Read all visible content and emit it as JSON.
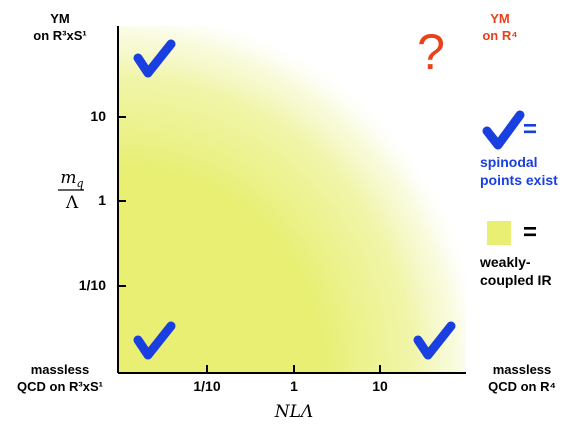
{
  "corners": {
    "top_left": [
      "YM",
      "on R³xS¹"
    ],
    "top_right": [
      "YM",
      "on R⁴"
    ],
    "bottom_left": [
      "massless",
      "QCD on R³xS¹"
    ],
    "bottom_right": [
      "massless",
      "QCD on R⁴"
    ]
  },
  "colors": {
    "region": "#e8ef72",
    "check": "#1a3fe0",
    "question": "#e8421a",
    "ym_r4": "#e8421a",
    "legend_text": "#1a3fe0"
  },
  "axes": {
    "x_ticks": [
      "1/10",
      "1",
      "10"
    ],
    "y_ticks": [
      "10",
      "1",
      "1/10"
    ],
    "x_label": "NLΛ",
    "y_label_num": "m",
    "y_label_sub": "q",
    "y_label_den": "Λ"
  },
  "markers": {
    "question": "?",
    "checks": [
      "top-left",
      "bottom-left",
      "bottom-right"
    ]
  },
  "legend": {
    "check_eq": "=",
    "check_text": [
      "spinodal",
      "points exist"
    ],
    "swatch_eq": "=",
    "swatch_text": [
      "weakly-",
      "coupled IR"
    ]
  }
}
